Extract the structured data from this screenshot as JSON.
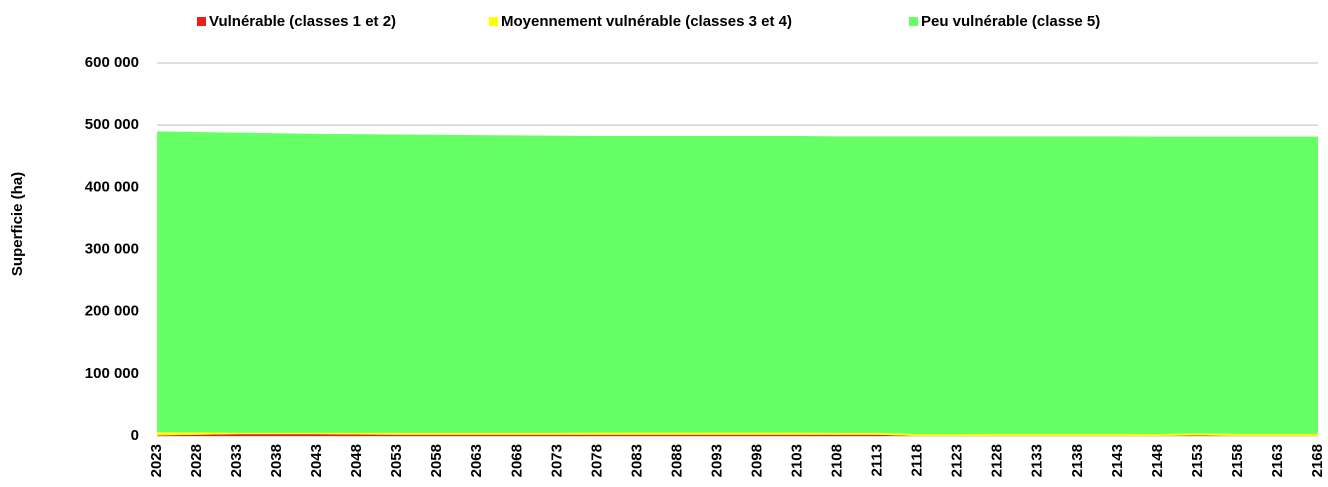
{
  "chart_data": {
    "type": "stacked-area",
    "y_label": "Superficie  (ha)",
    "categories": [
      "2023",
      "2028",
      "2033",
      "2038",
      "2043",
      "2048",
      "2053",
      "2058",
      "2063",
      "2068",
      "2073",
      "2078",
      "2083",
      "2088",
      "2093",
      "2098",
      "2103",
      "2108",
      "2113",
      "2118",
      "2123",
      "2128",
      "2133",
      "2138",
      "2143",
      "2148",
      "2153",
      "2158",
      "2163",
      "2168"
    ],
    "series": [
      {
        "name": "Vulnérable (classes 1 et 2)",
        "color": "#e8201c",
        "values": [
          1000,
          2000,
          3000,
          3000,
          3000,
          2500,
          2000,
          2000,
          2000,
          2000,
          2000,
          2000,
          2000,
          2000,
          2000,
          2000,
          2000,
          2000,
          2000,
          0,
          0,
          0,
          0,
          0,
          0,
          0,
          1000,
          0,
          0,
          0
        ]
      },
      {
        "name": "Moyennement vulnérable (classes 3 et 4)",
        "color": "#ffff00",
        "values": [
          5000,
          4000,
          2000,
          2000,
          2000,
          2500,
          3000,
          3000,
          3000,
          3000,
          3000,
          3500,
          3500,
          3500,
          3500,
          3500,
          3500,
          3000,
          3000,
          3000,
          3000,
          3500,
          3500,
          3500,
          3500,
          3000,
          3000,
          3500,
          3500,
          3500
        ]
      },
      {
        "name": "Peu vulnérable (classe 5)",
        "color": "#66ff66",
        "values": [
          484000,
          483000,
          483000,
          482000,
          481000,
          480500,
          480000,
          479500,
          479000,
          478500,
          478000,
          477000,
          477000,
          477000,
          477000,
          477000,
          477000,
          477000,
          477000,
          479000,
          479000,
          478500,
          478500,
          478500,
          478500,
          478500,
          477500,
          478000,
          478000,
          478000
        ]
      }
    ],
    "ylim": [
      0,
      600000
    ],
    "yticks": [
      {
        "value": 0,
        "label": "0"
      },
      {
        "value": 100000,
        "label": "100 000"
      },
      {
        "value": 200000,
        "label": "200 000"
      },
      {
        "value": 300000,
        "label": "300 000"
      },
      {
        "value": 400000,
        "label": "400 000"
      },
      {
        "value": 500000,
        "label": "500 000"
      },
      {
        "value": 600000,
        "label": "600 000"
      }
    ],
    "grid": true,
    "legend": "top"
  }
}
